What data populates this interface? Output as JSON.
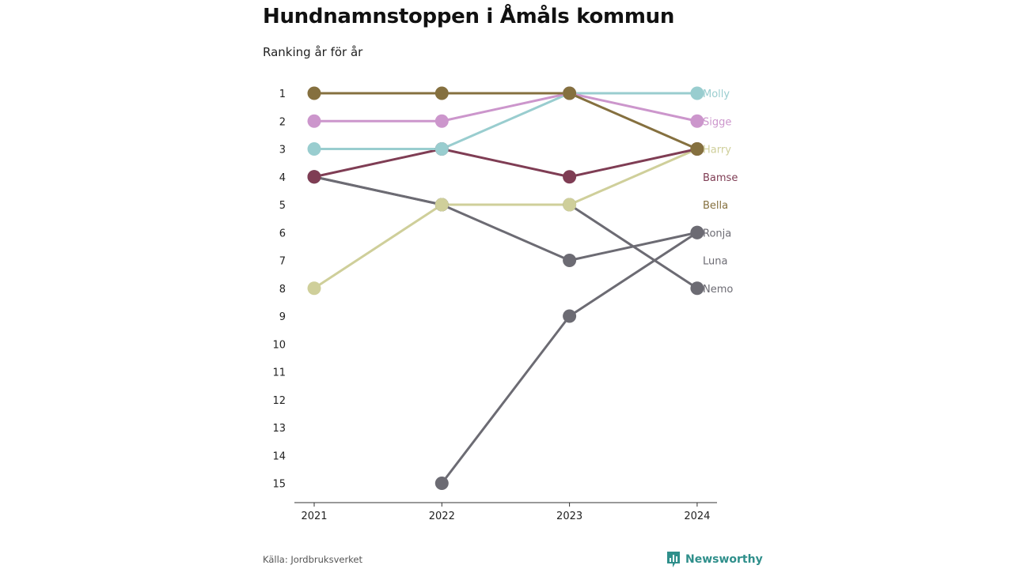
{
  "header": {
    "title": "Hundnamnstoppen i Åmåls kommun",
    "subtitle": "Ranking år för år"
  },
  "footer": {
    "source": "Källa: Jordbruksverket",
    "brand": "Newsworthy",
    "brand_icon": "bar-chart-icon",
    "brand_color": "#2f8f8b"
  },
  "chart_data": {
    "type": "line",
    "x": [
      "2021",
      "2022",
      "2023",
      "2024"
    ],
    "y_ticks": [
      "1",
      "2",
      "3",
      "4",
      "5",
      "6",
      "7",
      "8",
      "9",
      "10",
      "11",
      "12",
      "13",
      "14",
      "15"
    ],
    "ylim": [
      1,
      15
    ],
    "y_reversed": true,
    "grid": false,
    "legend": "direct-labels-right",
    "series": [
      {
        "name": "Nemo",
        "color": "#6c6b73",
        "values": [
          4,
          5,
          5,
          8
        ]
      },
      {
        "name": "Luna",
        "color": "#6c6b73",
        "values": [
          4,
          5,
          7,
          6
        ]
      },
      {
        "name": "Ronja",
        "color": "#6c6b73",
        "values": [
          null,
          15,
          9,
          6
        ]
      },
      {
        "name": "Harry",
        "color": "#cfcf9a",
        "values": [
          8,
          5,
          5,
          3
        ]
      },
      {
        "name": "Bamse",
        "color": "#7f3d54",
        "values": [
          4,
          3,
          4,
          3
        ]
      },
      {
        "name": "Molly",
        "color": "#99cdcf",
        "values": [
          3,
          3,
          1,
          1
        ]
      },
      {
        "name": "Sigge",
        "color": "#cc96cc",
        "values": [
          2,
          2,
          1,
          2
        ]
      },
      {
        "name": "Bella",
        "color": "#85703f",
        "values": [
          1,
          1,
          1,
          3
        ]
      }
    ],
    "label_order": [
      "Molly",
      "Sigge",
      "Harry",
      "Bamse",
      "Bella",
      "Ronja",
      "Luna",
      "Nemo"
    ],
    "label_colors": {
      "Molly": "#99cdcf",
      "Sigge": "#cc96cc",
      "Harry": "#cfcf9a",
      "Bamse": "#7f3d54",
      "Bella": "#85703f",
      "Ronja": "#6c6b73",
      "Luna": "#6c6b73",
      "Nemo": "#6c6b73"
    }
  }
}
